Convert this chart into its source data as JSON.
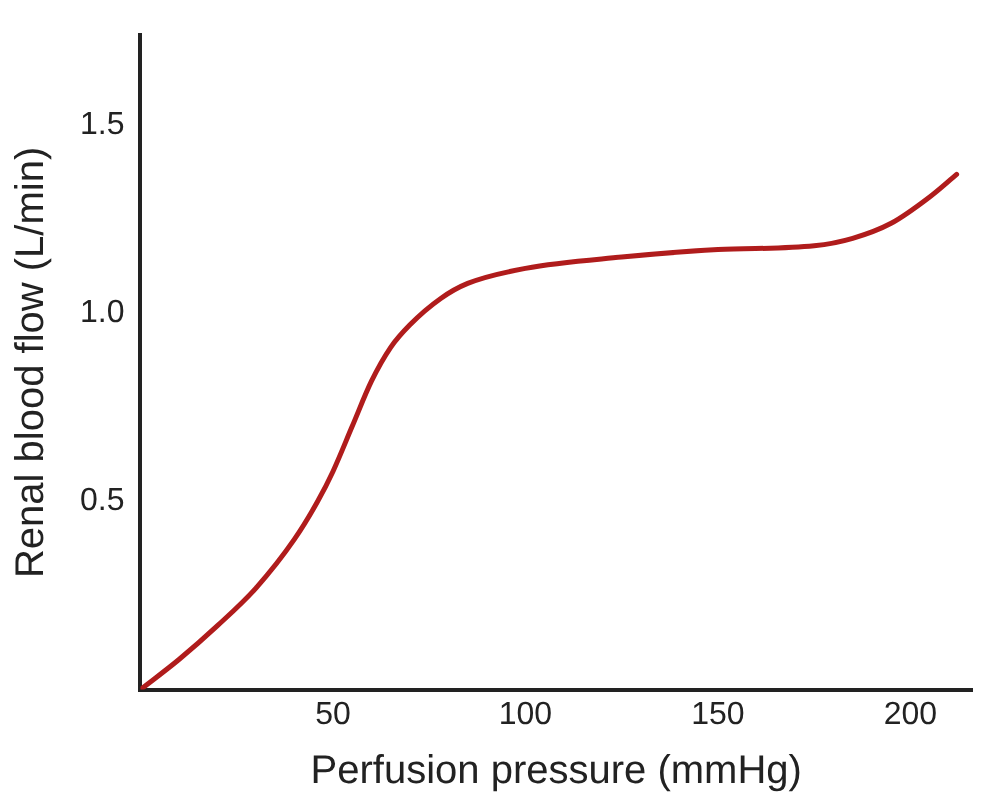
{
  "chart_data": {
    "type": "line",
    "xlabel": "Perfusion pressure (mmHg)",
    "ylabel": "Renal blood flow (L/min)",
    "x": [
      0,
      10,
      20,
      30,
      40,
      46,
      50,
      55,
      60,
      65,
      70,
      78,
      85,
      100,
      125,
      150,
      175,
      185,
      195,
      205,
      212
    ],
    "series": [
      {
        "color": "#b01c1c",
        "values": [
          0,
          0.08,
          0.17,
          0.27,
          0.4,
          0.5,
          0.58,
          0.7,
          0.82,
          0.91,
          0.97,
          1.04,
          1.08,
          1.12,
          1.15,
          1.17,
          1.18,
          1.2,
          1.24,
          1.31,
          1.37
        ]
      }
    ],
    "xlim": [
      0,
      216
    ],
    "xticks": [
      50,
      100,
      150,
      200
    ],
    "ylim": [
      0,
      1.74
    ],
    "yticks": [
      {
        "value": 0.5,
        "label": "0.5"
      },
      {
        "value": 1,
        "label": "1.0"
      },
      {
        "value": 1.5,
        "label": "1.5"
      }
    ],
    "grid": false,
    "legend": false,
    "marker": "none",
    "line_style": "solid"
  }
}
